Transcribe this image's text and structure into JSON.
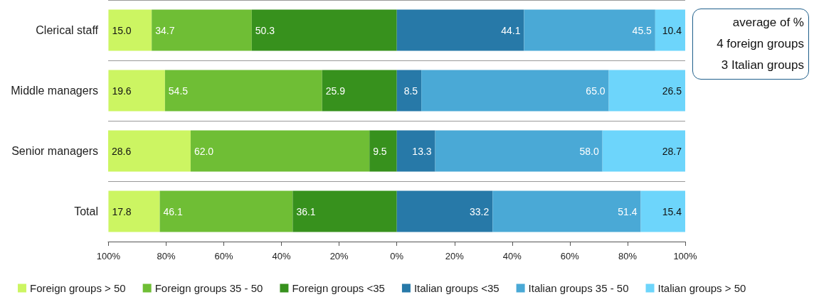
{
  "chart_data": {
    "type": "bar",
    "orientation": "horizontal",
    "categories": [
      "Clerical staff",
      "Middle managers",
      "Senior managers",
      "Total"
    ],
    "series": [
      {
        "name": "Foreign groups > 50",
        "color": "#ccf562",
        "values": [
          15.0,
          19.6,
          28.6,
          17.8
        ],
        "value_labels": [
          "15.0",
          "19.6",
          "28.6",
          "17.8"
        ],
        "base": [
          -100.0,
          -100.0,
          -100.1,
          -100.0
        ]
      },
      {
        "name": "Foreign groups 35 - 50",
        "color": "#6fbe35",
        "values": [
          34.7,
          54.5,
          62.0,
          46.1
        ],
        "value_labels": [
          "34.7",
          "54.5",
          "62.0",
          "46.1"
        ],
        "base": [
          -85.0,
          -80.4,
          -71.5,
          -82.2
        ]
      },
      {
        "name": "Foreign groups <35",
        "color": "#37911d",
        "values": [
          50.3,
          25.9,
          9.5,
          36.1
        ],
        "value_labels": [
          "50.3",
          "25.9",
          "9.5",
          "36.1"
        ],
        "base": [
          -50.3,
          -25.9,
          -9.5,
          -36.1
        ]
      },
      {
        "name": "Italian groups <35",
        "color": "#2779a8",
        "values": [
          44.1,
          8.5,
          13.3,
          33.2
        ],
        "value_labels": [
          "44.1",
          "8.5",
          "13.3",
          "33.2"
        ],
        "base": [
          0,
          0,
          0,
          0
        ]
      },
      {
        "name": "Italian groups 35 - 50",
        "color": "#4aa9d6",
        "values": [
          45.5,
          65.0,
          58.0,
          51.4
        ],
        "value_labels": [
          "45.5",
          "65.0",
          "58.0",
          "51.4"
        ],
        "base": [
          44.1,
          8.5,
          13.3,
          33.2
        ]
      },
      {
        "name": "Italian groups > 50",
        "color": "#6dd5fb",
        "values": [
          10.4,
          26.5,
          28.7,
          15.4
        ],
        "value_labels": [
          "10.4",
          "26.5",
          "28.7",
          "15.4"
        ],
        "base": [
          89.6,
          73.5,
          71.3,
          84.6
        ]
      }
    ],
    "xlim": [
      -100.1,
      100
    ],
    "xticks": [
      {
        "value": -100,
        "label": "100%"
      },
      {
        "value": -80,
        "label": "80%"
      },
      {
        "value": -60,
        "label": "60%"
      },
      {
        "value": -40,
        "label": "40%"
      },
      {
        "value": -20,
        "label": "20%"
      },
      {
        "value": 0,
        "label": "0%"
      },
      {
        "value": 20,
        "label": "20%"
      },
      {
        "value": 40,
        "label": "40%"
      },
      {
        "value": 60,
        "label": "60%"
      },
      {
        "value": 80,
        "label": "80%"
      },
      {
        "value": 100,
        "label": "100%"
      }
    ],
    "grid": "y",
    "legend": "bottom",
    "annotations": [
      "average of  %",
      "4 foreign groups",
      "3 Italian groups"
    ]
  }
}
